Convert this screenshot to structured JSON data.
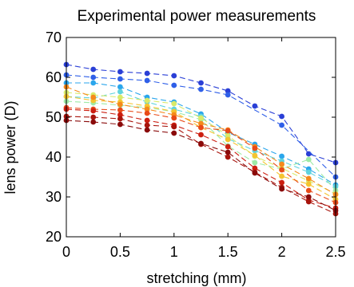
{
  "chart_data": {
    "type": "line",
    "title": "Experimental power measurements",
    "xlabel": "stretching (mm)",
    "ylabel": "lens power (D)",
    "xlim": [
      0,
      2.5
    ],
    "ylim": [
      20,
      70
    ],
    "xticks": [
      "0",
      "0.5",
      "1",
      "1.5",
      "2",
      "2.5"
    ],
    "yticks": [
      "20",
      "30",
      "40",
      "50",
      "60",
      "70"
    ],
    "grid": false,
    "x": [
      0,
      0.25,
      0.5,
      0.75,
      1.0,
      1.25,
      1.5,
      1.75,
      2.0,
      2.25,
      2.5
    ],
    "series": [
      {
        "color": "#2a3fd6",
        "values": [
          63.2,
          62.0,
          61.4,
          61.0,
          60.4,
          58.6,
          56.6,
          52.8,
          50.2,
          40.8,
          38.6
        ]
      },
      {
        "color": "#2f5fe8",
        "values": [
          60.6,
          60.0,
          59.6,
          59.2,
          58.0,
          57.0,
          55.6,
          null,
          48.0,
          null,
          35.0
        ]
      },
      {
        "color": "#2aa6ec",
        "values": [
          58.6,
          58.6,
          57.6,
          55.0,
          53.8,
          50.8,
          46.2,
          43.2,
          40.2,
          37.0,
          33.0
        ]
      },
      {
        "color": "#5fd3dd",
        "values": [
          55.2,
          54.8,
          56.4,
          53.8,
          52.0,
          50.2,
          44.6,
          41.6,
          39.0,
          36.2,
          32.6
        ]
      },
      {
        "color": "#9eeaa6",
        "values": [
          54.0,
          53.6,
          53.0,
          52.4,
          51.4,
          49.4,
          42.8,
          38.6,
          37.0,
          39.4,
          31.6
        ]
      },
      {
        "color": "#d8ea6a",
        "values": [
          56.2,
          55.6,
          55.0,
          54.2,
          53.4,
          49.8,
          45.4,
          40.2,
          37.2,
          34.0,
          30.8
        ]
      },
      {
        "color": "#f4c430",
        "values": [
          55.2,
          54.2,
          53.8,
          52.8,
          51.4,
          47.4,
          44.4,
          40.4,
          35.2,
          33.2,
          29.4
        ]
      },
      {
        "color": "#f58a1c",
        "values": [
          57.6,
          55.0,
          53.2,
          52.0,
          50.6,
          48.4,
          46.8,
          42.6,
          38.2,
          34.6,
          30.6
        ]
      },
      {
        "color": "#e84a18",
        "values": [
          52.4,
          52.0,
          51.8,
          51.0,
          49.8,
          47.4,
          46.6,
          42.2,
          36.8,
          31.6,
          28.6
        ]
      },
      {
        "color": "#cc1e10",
        "values": [
          52.0,
          51.6,
          50.6,
          49.2,
          48.0,
          45.6,
          42.6,
          37.2,
          33.6,
          29.2,
          27.2
        ]
      },
      {
        "color": "#a8140c",
        "values": [
          50.2,
          50.0,
          49.6,
          48.0,
          47.6,
          43.2,
          40.0,
          36.2,
          32.4,
          28.8,
          25.8
        ]
      },
      {
        "color": "#8a0a0a",
        "values": [
          49.2,
          48.8,
          48.2,
          46.8,
          46.0,
          43.4,
          41.2,
          36.0,
          32.0,
          30.0,
          26.6
        ]
      }
    ]
  }
}
